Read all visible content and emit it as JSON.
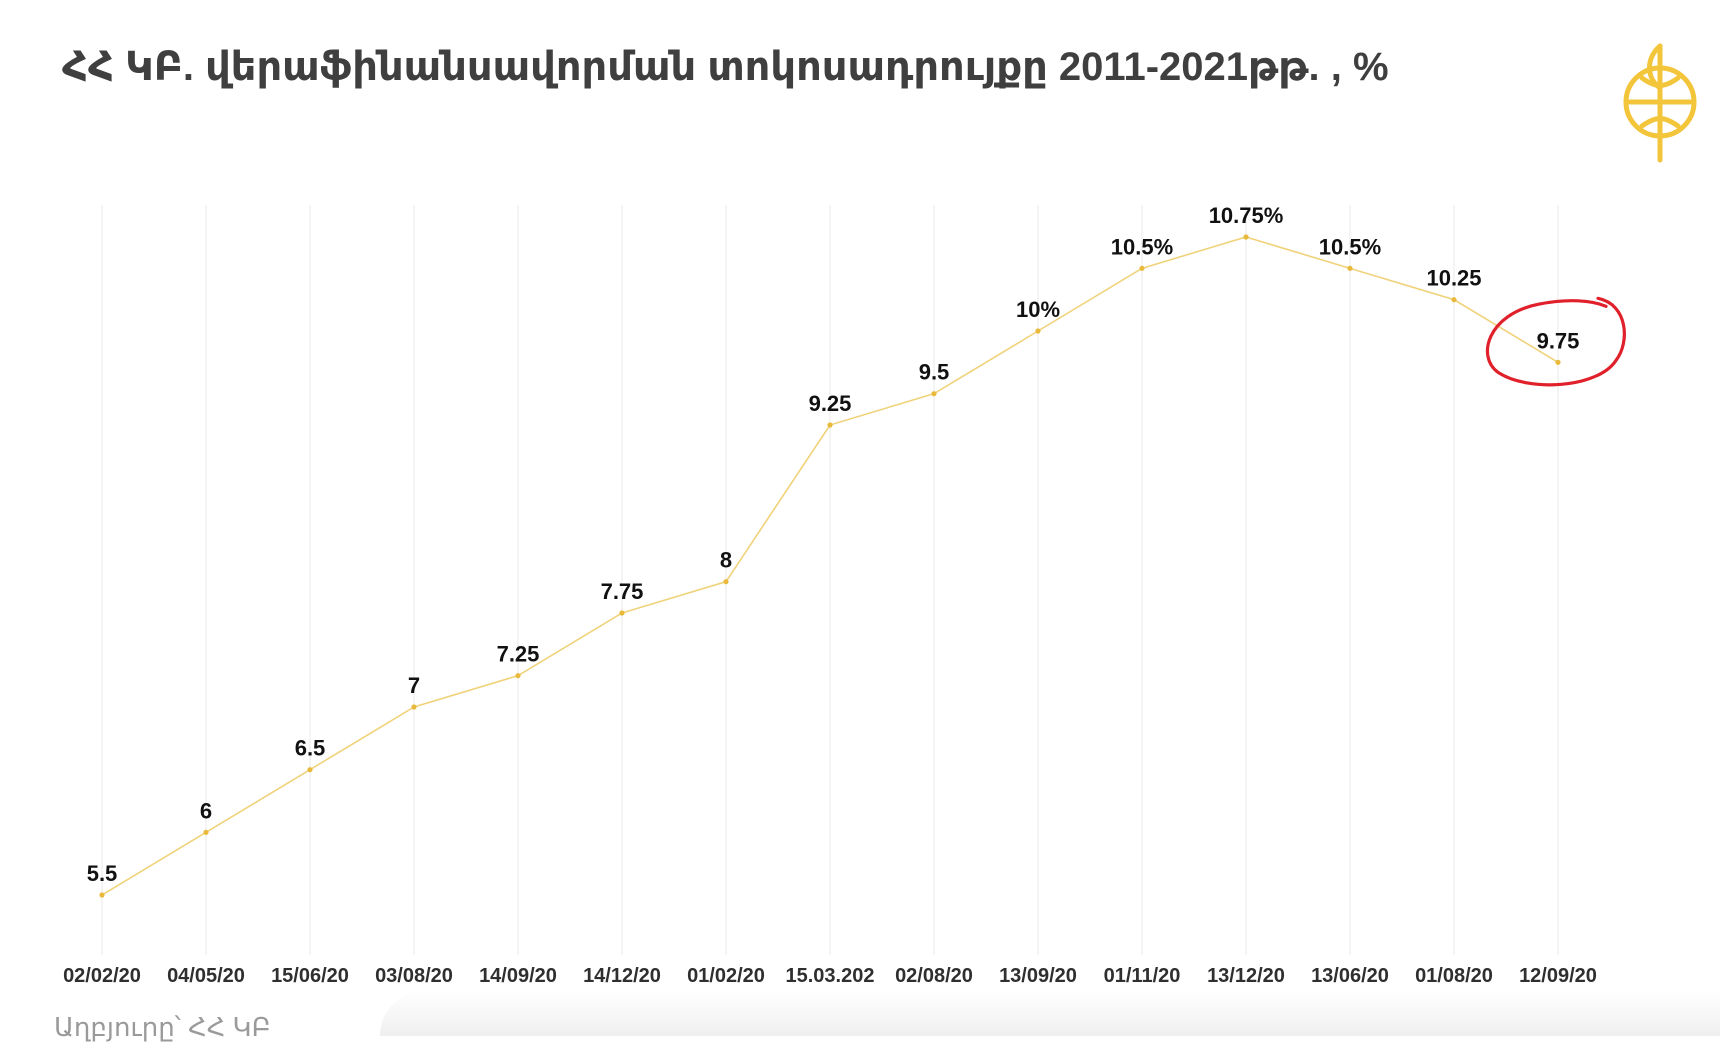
{
  "title": "ՀՀ ԿԲ. վերաֆինանսավորման տոկոսադրույքը  2011-2021թթ. , %",
  "source": "Աղբյուրը՝ ՀՀ ԿԲ",
  "colors": {
    "line": "#f0d27a",
    "point": "#e8b93a",
    "grid": "#e9e9e9",
    "highlight_circle": "#e0202a",
    "logo": "#f3c53b",
    "title": "#3f3f3f"
  },
  "chart_data": {
    "type": "line",
    "categories": [
      "02/02/20",
      "04/05/20",
      "15/06/20",
      "03/08/20",
      "14/09/20",
      "14/12/20",
      "01/02/20",
      "15.03.202",
      "02/08/20",
      "13/09/20",
      "01/11/20",
      "13/12/20",
      "13/06/20",
      "01/08/20",
      "12/09/20"
    ],
    "values": [
      5.5,
      6,
      6.5,
      7,
      7.25,
      7.75,
      8,
      9.25,
      9.5,
      10,
      10.5,
      10.75,
      10.5,
      10.25,
      9.75
    ],
    "data_labels": [
      "5.5",
      "6",
      "6.5",
      "7",
      "7.25",
      "7.75",
      "8",
      "9.25",
      "9.5",
      "10%",
      "10.5%",
      "10.75%",
      "10.5%",
      "10.25",
      "9.75"
    ],
    "highlighted_index": 14,
    "ylim": [
      5.5,
      10.75
    ],
    "grid": "vertical",
    "legend": "none"
  }
}
